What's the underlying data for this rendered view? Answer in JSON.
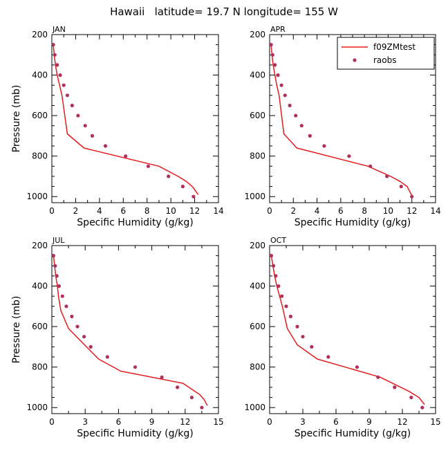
{
  "title": "Hawaii   latitude= 19.7 N longitude= 155 W",
  "legend": {
    "line_label": "f09ZMtest",
    "dot_label": "raobs"
  },
  "colors": {
    "model": "#e41a1c",
    "obs": "#b0305c",
    "axis": "#000000"
  },
  "chart_data": [
    {
      "type": "line",
      "panel": "JAN",
      "xlabel": "Specific Humidity (g/kg)",
      "ylabel": "Pressure (mb)",
      "xlim": [
        0,
        14
      ],
      "xticks": [
        0,
        2,
        4,
        6,
        8,
        10,
        12,
        14
      ],
      "ylim": [
        1030,
        200
      ],
      "yticks": [
        200,
        400,
        600,
        800,
        1000
      ],
      "legend": false,
      "series": [
        {
          "name": "f09ZMtest",
          "kind": "line",
          "x": [
            0.12,
            0.2,
            0.3,
            0.45,
            0.65,
            0.85,
            1.3,
            2.7,
            9.0,
            10.6,
            11.3,
            11.8,
            12.3
          ],
          "y": [
            250,
            300,
            350,
            400,
            450,
            500,
            690,
            760,
            850,
            900,
            925,
            950,
            990
          ]
        },
        {
          "name": "raobs",
          "kind": "scatter",
          "x": [
            0.12,
            0.25,
            0.45,
            0.7,
            1.0,
            1.3,
            1.7,
            2.2,
            2.8,
            3.4,
            4.5,
            6.2,
            8.1,
            9.8,
            11.0,
            11.9
          ],
          "y": [
            250,
            300,
            350,
            400,
            450,
            500,
            550,
            600,
            650,
            700,
            750,
            800,
            850,
            900,
            950,
            1000
          ]
        }
      ]
    },
    {
      "type": "line",
      "panel": "APR",
      "xlabel": "Specific Humidity (g/kg)",
      "ylabel": "",
      "xlim": [
        0,
        14
      ],
      "xticks": [
        0,
        2,
        4,
        6,
        8,
        10,
        12,
        14
      ],
      "ylim": [
        1030,
        200
      ],
      "yticks": [
        200,
        400,
        600,
        800,
        1000
      ],
      "legend": true,
      "series": [
        {
          "name": "f09ZMtest",
          "kind": "line",
          "x": [
            0.12,
            0.2,
            0.3,
            0.45,
            0.6,
            0.8,
            1.2,
            2.3,
            8.3,
            10.2,
            11.0,
            11.6,
            12.0
          ],
          "y": [
            250,
            300,
            350,
            400,
            450,
            500,
            690,
            760,
            850,
            900,
            925,
            950,
            995
          ]
        },
        {
          "name": "raobs",
          "kind": "scatter",
          "x": [
            0.12,
            0.25,
            0.45,
            0.7,
            1.0,
            1.3,
            1.7,
            2.2,
            2.7,
            3.4,
            4.6,
            6.7,
            8.5,
            9.9,
            11.1,
            12.0
          ],
          "y": [
            250,
            300,
            350,
            400,
            450,
            500,
            550,
            600,
            650,
            700,
            750,
            800,
            850,
            900,
            950,
            1000
          ]
        }
      ]
    },
    {
      "type": "line",
      "panel": "JUL",
      "xlabel": "Specific Humidity (g/kg)",
      "ylabel": "Pressure (mb)",
      "xlim": [
        0,
        15
      ],
      "xticks": [
        0,
        3,
        6,
        9,
        12,
        15
      ],
      "ylim": [
        1030,
        200
      ],
      "yticks": [
        200,
        400,
        600,
        800,
        1000
      ],
      "legend": false,
      "series": [
        {
          "name": "f09ZMtest",
          "kind": "line",
          "x": [
            0.15,
            0.25,
            0.35,
            0.5,
            0.6,
            0.8,
            1.5,
            4.2,
            6.2,
            11.8,
            13.3,
            13.7,
            14.0
          ],
          "y": [
            250,
            300,
            350,
            400,
            450,
            520,
            610,
            760,
            820,
            880,
            935,
            960,
            990
          ]
        },
        {
          "name": "raobs",
          "kind": "scatter",
          "x": [
            0.15,
            0.3,
            0.45,
            0.65,
            0.95,
            1.3,
            1.8,
            2.3,
            2.9,
            3.5,
            5.0,
            7.5,
            9.9,
            11.3,
            12.6,
            13.5
          ],
          "y": [
            250,
            300,
            350,
            400,
            450,
            500,
            550,
            600,
            650,
            700,
            750,
            800,
            850,
            900,
            950,
            1000
          ]
        }
      ]
    },
    {
      "type": "line",
      "panel": "OCT",
      "xlabel": "Specific Humidity (g/kg)",
      "ylabel": "",
      "xlim": [
        0,
        15
      ],
      "xticks": [
        0,
        3,
        6,
        9,
        12,
        15
      ],
      "ylim": [
        1030,
        200
      ],
      "yticks": [
        200,
        400,
        600,
        800,
        1000
      ],
      "legend": false,
      "series": [
        {
          "name": "f09ZMtest",
          "kind": "line",
          "x": [
            0.15,
            0.3,
            0.45,
            0.65,
            0.9,
            1.15,
            1.6,
            2.5,
            4.3,
            10.0,
            12.6,
            13.5,
            14.0
          ],
          "y": [
            250,
            300,
            350,
            400,
            450,
            500,
            610,
            690,
            760,
            850,
            920,
            950,
            985
          ]
        },
        {
          "name": "raobs",
          "kind": "scatter",
          "x": [
            0.15,
            0.35,
            0.55,
            0.8,
            1.1,
            1.5,
            1.9,
            2.5,
            3.0,
            3.8,
            5.3,
            7.9,
            9.8,
            11.3,
            12.8,
            13.8
          ],
          "y": [
            250,
            300,
            350,
            400,
            450,
            500,
            550,
            600,
            650,
            700,
            750,
            800,
            850,
            900,
            950,
            1000
          ]
        }
      ]
    }
  ]
}
